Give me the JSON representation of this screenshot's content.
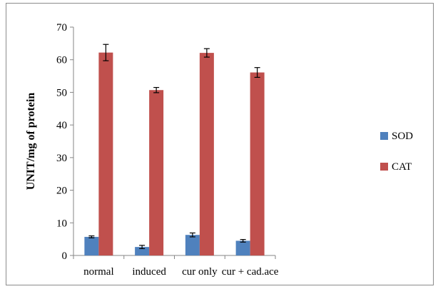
{
  "chart_data": {
    "type": "bar",
    "categories": [
      "normal",
      "induced",
      "cur only",
      "cur + cad.ace"
    ],
    "series": [
      {
        "name": "SOD",
        "color": "#4f81bd",
        "values": [
          5.7,
          2.6,
          6.3,
          4.5
        ],
        "errors": [
          0.3,
          0.5,
          0.6,
          0.4
        ]
      },
      {
        "name": "CAT",
        "color": "#c0504d",
        "values": [
          62.2,
          50.7,
          62.1,
          56.1
        ],
        "errors": [
          2.5,
          0.8,
          1.3,
          1.5
        ]
      }
    ],
    "title": "",
    "xlabel": "",
    "ylabel": "UNIT/mg of protein",
    "ylim": [
      0,
      70
    ],
    "yticks": [
      0,
      10,
      20,
      30,
      40,
      50,
      60,
      70
    ],
    "grid": false,
    "legend_position": "right"
  }
}
